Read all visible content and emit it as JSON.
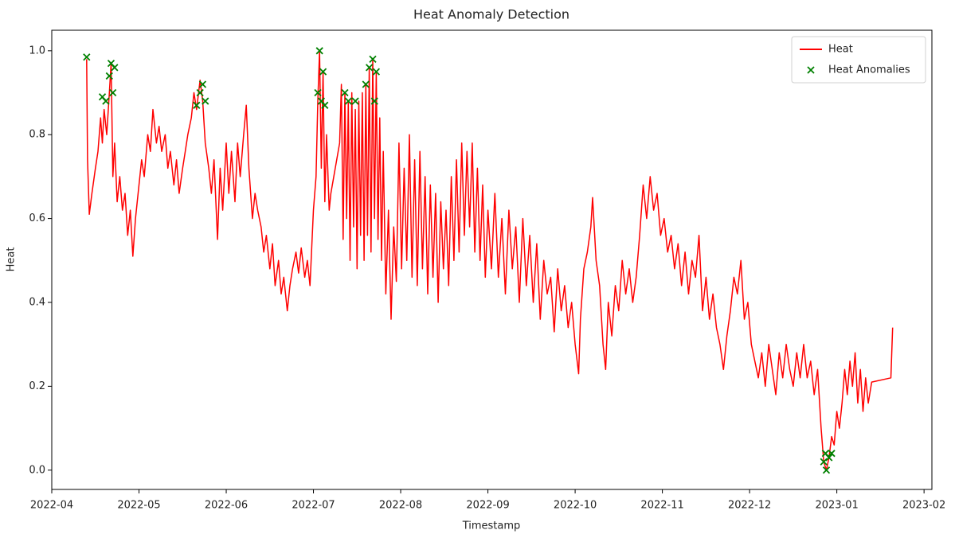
{
  "chart_data": {
    "type": "line",
    "title": "Heat Anomaly Detection",
    "x_label": "Timestamp",
    "y_label": "Heat",
    "xlim": [
      4,
      14.09
    ],
    "ylim": [
      -0.046,
      1.049
    ],
    "xticks": [
      {
        "value": 4,
        "label": "2022-04"
      },
      {
        "value": 5,
        "label": "2022-05"
      },
      {
        "value": 6,
        "label": "2022-06"
      },
      {
        "value": 7,
        "label": "2022-07"
      },
      {
        "value": 8,
        "label": "2022-08"
      },
      {
        "value": 9,
        "label": "2022-09"
      },
      {
        "value": 10,
        "label": "2022-10"
      },
      {
        "value": 11,
        "label": "2022-11"
      },
      {
        "value": 12,
        "label": "2022-12"
      },
      {
        "value": 13,
        "label": "2023-01"
      },
      {
        "value": 14,
        "label": "2023-02"
      }
    ],
    "yticks": [
      {
        "value": 0,
        "label": "0.0"
      },
      0.2,
      0.4,
      0.6,
      0.8,
      {
        "value": 1,
        "label": "1.0"
      }
    ],
    "legend": "upper right",
    "series": [
      {
        "name": "Heat",
        "type": "line",
        "color": "#ff0000",
        "x": [
          4.4,
          4.41,
          4.43,
          4.46,
          4.5,
          4.53,
          4.56,
          4.58,
          4.6,
          4.63,
          4.66,
          4.68,
          4.7,
          4.72,
          4.75,
          4.78,
          4.81,
          4.84,
          4.87,
          4.9,
          4.93,
          4.96,
          5.0,
          5.03,
          5.06,
          5.1,
          5.13,
          5.16,
          5.2,
          5.23,
          5.26,
          5.3,
          5.33,
          5.36,
          5.4,
          5.43,
          5.46,
          5.5,
          5.53,
          5.56,
          5.6,
          5.63,
          5.66,
          5.7,
          5.73,
          5.76,
          5.8,
          5.83,
          5.86,
          5.9,
          5.93,
          5.96,
          6.0,
          6.03,
          6.06,
          6.1,
          6.13,
          6.16,
          6.2,
          6.23,
          6.26,
          6.3,
          6.33,
          6.36,
          6.4,
          6.43,
          6.46,
          6.5,
          6.53,
          6.56,
          6.6,
          6.63,
          6.66,
          6.7,
          6.73,
          6.76,
          6.8,
          6.83,
          6.86,
          6.9,
          6.93,
          6.96,
          7.0,
          7.03,
          7.05,
          7.07,
          7.09,
          7.11,
          7.13,
          7.15,
          7.18,
          7.2,
          7.3,
          7.32,
          7.34,
          7.36,
          7.38,
          7.4,
          7.42,
          7.44,
          7.46,
          7.48,
          7.5,
          7.52,
          7.54,
          7.56,
          7.58,
          7.6,
          7.62,
          7.64,
          7.66,
          7.68,
          7.7,
          7.72,
          7.74,
          7.76,
          7.78,
          7.8,
          7.83,
          7.86,
          7.89,
          7.92,
          7.95,
          7.98,
          8.01,
          8.04,
          8.07,
          8.1,
          8.13,
          8.16,
          8.19,
          8.22,
          8.25,
          8.28,
          8.31,
          8.34,
          8.37,
          8.4,
          8.43,
          8.46,
          8.49,
          8.52,
          8.55,
          8.58,
          8.61,
          8.64,
          8.67,
          8.7,
          8.73,
          8.76,
          8.79,
          8.82,
          8.85,
          8.88,
          8.91,
          8.94,
          8.97,
          9.0,
          9.04,
          9.08,
          9.12,
          9.16,
          9.2,
          9.24,
          9.28,
          9.32,
          9.36,
          9.4,
          9.44,
          9.48,
          9.52,
          9.56,
          9.6,
          9.64,
          9.68,
          9.72,
          9.76,
          9.8,
          9.84,
          9.88,
          9.92,
          9.96,
          10.0,
          10.04,
          10.06,
          10.1,
          10.14,
          10.18,
          10.2,
          10.24,
          10.28,
          10.32,
          10.35,
          10.38,
          10.42,
          10.46,
          10.5,
          10.54,
          10.58,
          10.62,
          10.66,
          10.7,
          10.74,
          10.78,
          10.82,
          10.86,
          10.9,
          10.94,
          10.98,
          11.02,
          11.06,
          11.1,
          11.14,
          11.18,
          11.22,
          11.26,
          11.3,
          11.34,
          11.38,
          11.42,
          11.46,
          11.5,
          11.54,
          11.58,
          11.62,
          11.66,
          11.7,
          11.74,
          11.78,
          11.82,
          11.86,
          11.9,
          11.94,
          11.98,
          12.02,
          12.06,
          12.1,
          12.14,
          12.18,
          12.22,
          12.26,
          12.3,
          12.34,
          12.38,
          12.42,
          12.46,
          12.5,
          12.54,
          12.58,
          12.62,
          12.66,
          12.7,
          12.74,
          12.78,
          12.82,
          12.85,
          12.88,
          12.91,
          12.94,
          12.97,
          13.0,
          13.03,
          13.06,
          13.09,
          13.12,
          13.15,
          13.18,
          13.21,
          13.24,
          13.27,
          13.3,
          13.33,
          13.36,
          13.4,
          13.62,
          13.64
        ],
        "values": [
          0.98,
          0.74,
          0.61,
          0.66,
          0.72,
          0.76,
          0.84,
          0.78,
          0.86,
          0.8,
          0.9,
          0.97,
          0.7,
          0.78,
          0.64,
          0.7,
          0.62,
          0.66,
          0.56,
          0.62,
          0.51,
          0.6,
          0.68,
          0.74,
          0.7,
          0.8,
          0.76,
          0.86,
          0.78,
          0.82,
          0.76,
          0.8,
          0.72,
          0.76,
          0.68,
          0.74,
          0.66,
          0.72,
          0.76,
          0.8,
          0.84,
          0.9,
          0.86,
          0.93,
          0.88,
          0.78,
          0.72,
          0.66,
          0.74,
          0.55,
          0.72,
          0.62,
          0.78,
          0.66,
          0.76,
          0.64,
          0.78,
          0.7,
          0.8,
          0.87,
          0.72,
          0.6,
          0.66,
          0.62,
          0.58,
          0.52,
          0.56,
          0.48,
          0.54,
          0.44,
          0.5,
          0.42,
          0.46,
          0.38,
          0.44,
          0.48,
          0.52,
          0.47,
          0.53,
          0.46,
          0.5,
          0.44,
          0.62,
          0.7,
          0.88,
          1.0,
          0.72,
          0.95,
          0.64,
          0.8,
          0.62,
          0.66,
          0.78,
          0.92,
          0.55,
          0.9,
          0.6,
          0.88,
          0.5,
          0.9,
          0.58,
          0.86,
          0.48,
          0.88,
          0.56,
          0.9,
          0.5,
          0.92,
          0.56,
          0.96,
          0.52,
          0.98,
          0.6,
          0.95,
          0.55,
          0.84,
          0.5,
          0.76,
          0.42,
          0.62,
          0.36,
          0.58,
          0.45,
          0.78,
          0.48,
          0.72,
          0.5,
          0.8,
          0.46,
          0.74,
          0.44,
          0.76,
          0.48,
          0.7,
          0.42,
          0.68,
          0.46,
          0.66,
          0.4,
          0.64,
          0.48,
          0.62,
          0.44,
          0.7,
          0.5,
          0.74,
          0.52,
          0.78,
          0.56,
          0.76,
          0.58,
          0.78,
          0.52,
          0.72,
          0.5,
          0.68,
          0.46,
          0.62,
          0.48,
          0.66,
          0.46,
          0.6,
          0.42,
          0.62,
          0.48,
          0.58,
          0.4,
          0.6,
          0.44,
          0.56,
          0.4,
          0.54,
          0.36,
          0.5,
          0.42,
          0.46,
          0.33,
          0.48,
          0.38,
          0.44,
          0.34,
          0.4,
          0.3,
          0.23,
          0.36,
          0.48,
          0.52,
          0.58,
          0.65,
          0.5,
          0.44,
          0.3,
          0.24,
          0.4,
          0.32,
          0.44,
          0.38,
          0.5,
          0.42,
          0.48,
          0.4,
          0.46,
          0.56,
          0.68,
          0.6,
          0.7,
          0.62,
          0.66,
          0.56,
          0.6,
          0.52,
          0.56,
          0.48,
          0.54,
          0.44,
          0.52,
          0.42,
          0.5,
          0.46,
          0.56,
          0.38,
          0.46,
          0.36,
          0.42,
          0.34,
          0.3,
          0.24,
          0.32,
          0.38,
          0.46,
          0.42,
          0.5,
          0.36,
          0.4,
          0.3,
          0.26,
          0.22,
          0.28,
          0.2,
          0.3,
          0.24,
          0.18,
          0.28,
          0.22,
          0.3,
          0.24,
          0.2,
          0.28,
          0.22,
          0.3,
          0.22,
          0.26,
          0.18,
          0.24,
          0.1,
          0.02,
          0.0,
          0.03,
          0.08,
          0.06,
          0.14,
          0.1,
          0.16,
          0.24,
          0.18,
          0.26,
          0.2,
          0.28,
          0.16,
          0.24,
          0.14,
          0.22,
          0.16,
          0.21,
          0.22,
          0.34
        ]
      },
      {
        "name": "Heat Anomalies",
        "type": "scatter",
        "marker": "x",
        "color": "#008000",
        "x": [
          4.4,
          4.58,
          4.62,
          4.66,
          4.68,
          4.7,
          4.72,
          5.66,
          5.7,
          5.73,
          5.76,
          7.05,
          7.07,
          7.09,
          7.11,
          7.13,
          7.36,
          7.4,
          7.48,
          7.6,
          7.64,
          7.68,
          7.7,
          7.72,
          12.85,
          12.87,
          12.88,
          12.91,
          12.94
        ],
        "values": [
          0.985,
          0.89,
          0.88,
          0.94,
          0.97,
          0.9,
          0.96,
          0.87,
          0.9,
          0.92,
          0.88,
          0.9,
          1.0,
          0.88,
          0.95,
          0.87,
          0.9,
          0.88,
          0.88,
          0.92,
          0.96,
          0.98,
          0.88,
          0.95,
          0.02,
          0.04,
          0.0,
          0.03,
          0.04
        ]
      }
    ]
  }
}
